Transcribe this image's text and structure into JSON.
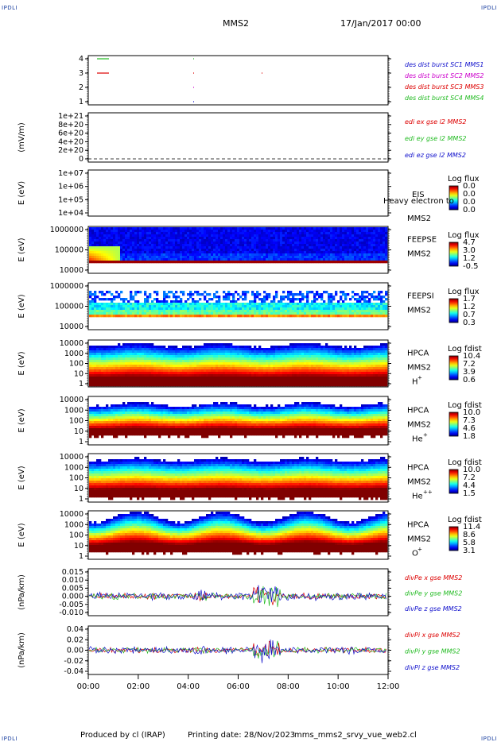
{
  "header": {
    "spacecraft": "MMS2",
    "date": "17/Jan/2017 00:00",
    "corner_label": "IPDLI"
  },
  "footer": {
    "produced_by": "Produced by cl (IRAP)",
    "printing_date": "Printing date: 28/Nov/2023",
    "script_name": "mms_mms2_srvy_vue_web2.cl"
  },
  "x_axis": {
    "ticks": [
      "00:00",
      "02:00",
      "04:00",
      "06:00",
      "08:00",
      "10:00",
      "12:00"
    ]
  },
  "colors": {
    "red": "#dd0000",
    "green": "#22bb22",
    "blue": "#1111cc",
    "magenta": "#cc00cc",
    "spectrogram_bg": "#1a1aa8"
  },
  "chart_data": [
    {
      "type": "scatter",
      "panel": "burst",
      "yticks": [
        "4",
        "3",
        "2",
        "1"
      ],
      "legend": [
        {
          "label": "des dist burst SC1 MMS1",
          "color": "#1111cc"
        },
        {
          "label": "des dist burst SC2 MMS2",
          "color": "#cc00cc"
        },
        {
          "label": "des dist burst SC3 MMS3",
          "color": "#dd0000"
        },
        {
          "label": "des dist burst SC4 MMS4",
          "color": "#22bb22"
        }
      ]
    },
    {
      "type": "line",
      "panel": "edi",
      "ylabel": "(mV/m)",
      "yticks": [
        "1e+21",
        "8e+20",
        "6e+20",
        "4e+20",
        "2e+20",
        "0"
      ],
      "legend": [
        {
          "label": "edi ex gse l2 MMS2",
          "color": "#dd0000"
        },
        {
          "label": "edi ey gse l2 MMS2",
          "color": "#22bb22"
        },
        {
          "label": "edi ez gse l2 MMS2",
          "color": "#1111cc"
        }
      ]
    },
    {
      "type": "heatmap",
      "panel": "eis",
      "ylabel": "E (eV)",
      "yticks": [
        "1e+07",
        "1e+06",
        "1e+05",
        "1e+04"
      ],
      "instrument": "EIS",
      "spacecraft": "MMS2",
      "overlay_text": "Heavy electron to",
      "colorbar_title": "Log flux",
      "colorbar_ticks": [
        "0.0",
        "0.0",
        "0.0",
        "0.0"
      ]
    },
    {
      "type": "heatmap",
      "panel": "feepse",
      "ylabel": "E (eV)",
      "yticks": [
        "1000000",
        "100000",
        "10000"
      ],
      "instrument": "FEEPSE",
      "spacecraft": "MMS2",
      "colorbar_title": "Log flux",
      "colorbar_ticks": [
        "4.7",
        "3.0",
        "1.2",
        "-0.5"
      ]
    },
    {
      "type": "heatmap",
      "panel": "feepsi",
      "ylabel": "E (eV)",
      "yticks": [
        "1000000",
        "100000",
        "10000"
      ],
      "instrument": "FEEPSI",
      "spacecraft": "MMS2",
      "colorbar_title": "Log flux",
      "colorbar_ticks": [
        "1.7",
        "1.2",
        "0.7",
        "0.3"
      ]
    },
    {
      "type": "heatmap",
      "panel": "hpca_h",
      "ylabel": "E (eV)",
      "yticks": [
        "10000",
        "1000",
        "100",
        "10",
        "1"
      ],
      "instrument": "HPCA",
      "spacecraft": "MMS2",
      "species": "H",
      "species_charge": "+",
      "colorbar_title": "Log fdist",
      "colorbar_ticks": [
        "10.4",
        "7.2",
        "3.9",
        "0.6"
      ]
    },
    {
      "type": "heatmap",
      "panel": "hpca_he",
      "ylabel": "E (eV)",
      "yticks": [
        "10000",
        "1000",
        "100",
        "10",
        "1"
      ],
      "instrument": "HPCA",
      "spacecraft": "MMS2",
      "species": "He",
      "species_charge": "+",
      "colorbar_title": "Log fdist",
      "colorbar_ticks": [
        "10.0",
        "7.3",
        "4.6",
        "1.8"
      ]
    },
    {
      "type": "heatmap",
      "panel": "hpca_hepp",
      "ylabel": "E (eV)",
      "yticks": [
        "10000",
        "1000",
        "100",
        "10",
        "1"
      ],
      "instrument": "HPCA",
      "spacecraft": "MMS2",
      "species": "He",
      "species_charge": "++",
      "colorbar_title": "Log fdist",
      "colorbar_ticks": [
        "10.0",
        "7.2",
        "4.4",
        "1.5"
      ]
    },
    {
      "type": "heatmap",
      "panel": "hpca_o",
      "ylabel": "E (eV)",
      "yticks": [
        "10000",
        "1000",
        "100",
        "10",
        "1"
      ],
      "instrument": "HPCA",
      "spacecraft": "MMS2",
      "species": "O",
      "species_charge": "+",
      "colorbar_title": "Log fdist",
      "colorbar_ticks": [
        "11.4",
        "8.6",
        "5.8",
        "3.1"
      ]
    },
    {
      "type": "line",
      "panel": "divpe",
      "ylabel": "(nPa/km)",
      "yticks": [
        "0.015",
        "0.010",
        "0.005",
        "0.000",
        "-0.005",
        "-0.010"
      ],
      "legend": [
        {
          "label": "divPe x gse MMS2",
          "color": "#dd0000"
        },
        {
          "label": "divPe y gse MMS2",
          "color": "#22bb22"
        },
        {
          "label": "divPe z gse MMS2",
          "color": "#1111cc"
        }
      ]
    },
    {
      "type": "line",
      "panel": "divpi",
      "ylabel": "(nPa/km)",
      "yticks": [
        "0.04",
        "0.02",
        "0.00",
        "-0.02",
        "-0.04"
      ],
      "legend": [
        {
          "label": "divPi x gse MMS2",
          "color": "#dd0000"
        },
        {
          "label": "divPi y gse MMS2",
          "color": "#22bb22"
        },
        {
          "label": "divPi z gse MMS2",
          "color": "#1111cc"
        }
      ]
    }
  ]
}
